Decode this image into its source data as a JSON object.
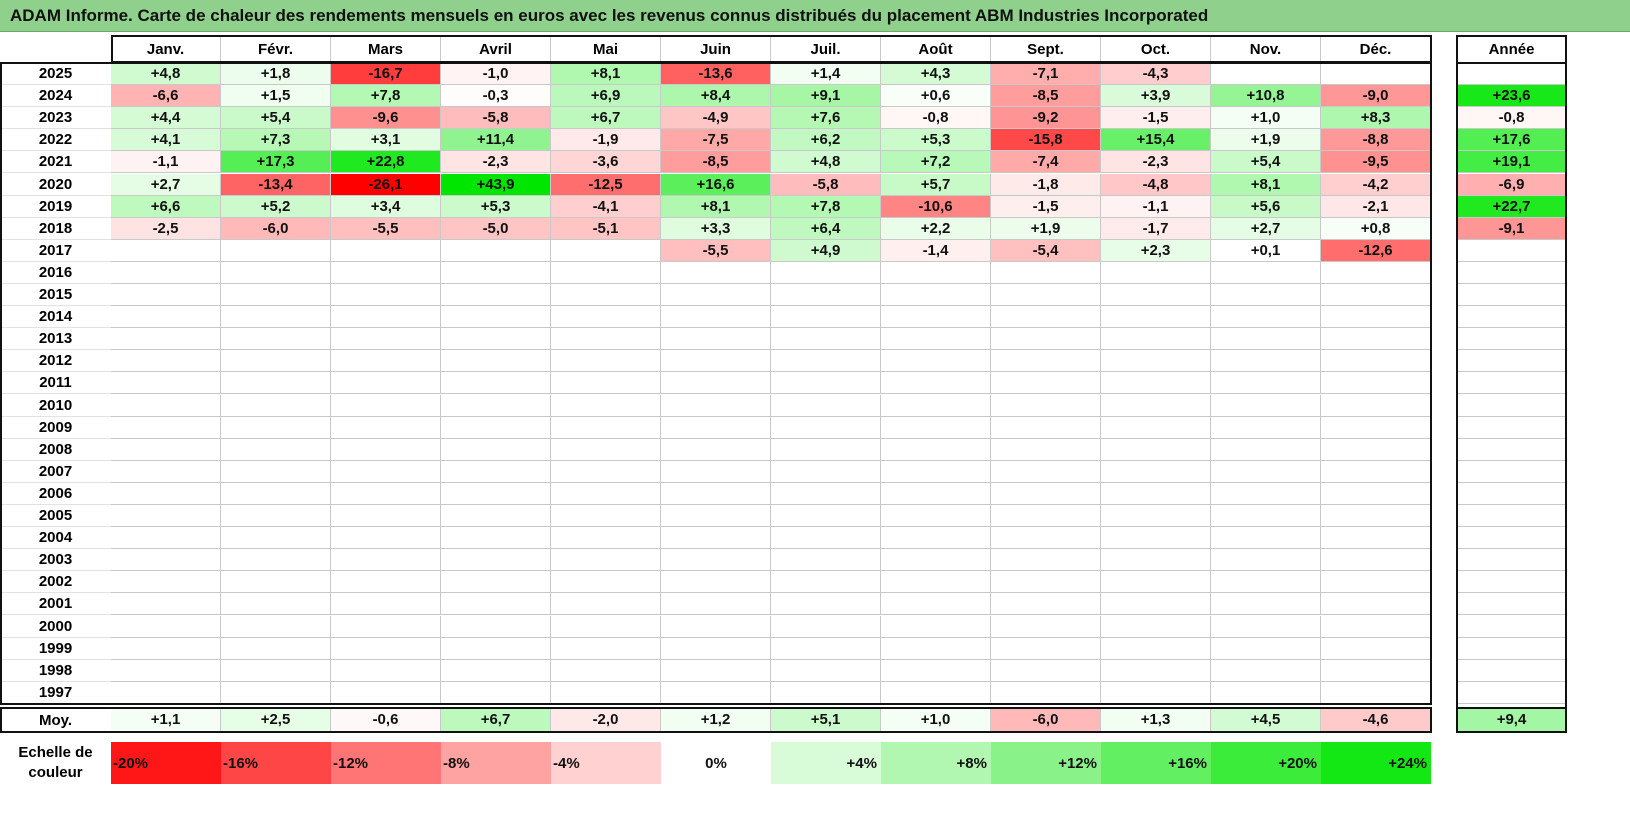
{
  "title": "ADAM Informe. Carte de chaleur des rendements mensuels en euros avec les revenus connus distribués du placement ABM Industries Incorporated",
  "chart_data": {
    "type": "heatmap",
    "columns": [
      "Janv.",
      "Févr.",
      "Mars",
      "Avril",
      "Mai",
      "Juin",
      "Juil.",
      "Août",
      "Sept.",
      "Oct.",
      "Nov.",
      "Déc."
    ],
    "annual_header": "Année",
    "rows": [
      {
        "year": "2025",
        "values": [
          "+4,8",
          "+1,8",
          "-16,7",
          "-1,0",
          "+8,1",
          "-13,6",
          "+1,4",
          "+4,3",
          "-7,1",
          "-4,3",
          "",
          ""
        ],
        "annual": ""
      },
      {
        "year": "2024",
        "values": [
          "-6,6",
          "+1,5",
          "+7,8",
          "-0,3",
          "+6,9",
          "+8,4",
          "+9,1",
          "+0,6",
          "-8,5",
          "+3,9",
          "+10,8",
          "-9,0"
        ],
        "annual": "+23,6"
      },
      {
        "year": "2023",
        "values": [
          "+4,4",
          "+5,4",
          "-9,6",
          "-5,8",
          "+6,7",
          "-4,9",
          "+7,6",
          "-0,8",
          "-9,2",
          "-1,5",
          "+1,0",
          "+8,3"
        ],
        "annual": "-0,8"
      },
      {
        "year": "2022",
        "values": [
          "+4,1",
          "+7,3",
          "+3,1",
          "+11,4",
          "-1,9",
          "-7,5",
          "+6,2",
          "+5,3",
          "-15,8",
          "+15,4",
          "+1,9",
          "-8,8"
        ],
        "annual": "+17,6"
      },
      {
        "year": "2021",
        "values": [
          "-1,1",
          "+17,3",
          "+22,8",
          "-2,3",
          "-3,6",
          "-8,5",
          "+4,8",
          "+7,2",
          "-7,4",
          "-2,3",
          "+5,4",
          "-9,5"
        ],
        "annual": "+19,1"
      },
      {
        "year": "2020",
        "values": [
          "+2,7",
          "-13,4",
          "-26,1",
          "+43,9",
          "-12,5",
          "+16,6",
          "-5,8",
          "+5,7",
          "-1,8",
          "-4,8",
          "+8,1",
          "-4,2"
        ],
        "annual": "-6,9"
      },
      {
        "year": "2019",
        "values": [
          "+6,6",
          "+5,2",
          "+3,4",
          "+5,3",
          "-4,1",
          "+8,1",
          "+7,8",
          "-10,6",
          "-1,5",
          "-1,1",
          "+5,6",
          "-2,1"
        ],
        "annual": "+22,7"
      },
      {
        "year": "2018",
        "values": [
          "-2,5",
          "-6,0",
          "-5,5",
          "-5,0",
          "-5,1",
          "+3,3",
          "+6,4",
          "+2,2",
          "+1,9",
          "-1,7",
          "+2,7",
          "+0,8"
        ],
        "annual": "-9,1"
      },
      {
        "year": "2017",
        "values": [
          "",
          "",
          "",
          "",
          "",
          "-5,5",
          "+4,9",
          "-1,4",
          "-5,4",
          "+2,3",
          "+0,1",
          "-12,6"
        ],
        "annual": ""
      },
      {
        "year": "2016",
        "values": [
          "",
          "",
          "",
          "",
          "",
          "",
          "",
          "",
          "",
          "",
          "",
          ""
        ],
        "annual": ""
      },
      {
        "year": "2015",
        "values": [
          "",
          "",
          "",
          "",
          "",
          "",
          "",
          "",
          "",
          "",
          "",
          ""
        ],
        "annual": ""
      },
      {
        "year": "2014",
        "values": [
          "",
          "",
          "",
          "",
          "",
          "",
          "",
          "",
          "",
          "",
          "",
          ""
        ],
        "annual": ""
      },
      {
        "year": "2013",
        "values": [
          "",
          "",
          "",
          "",
          "",
          "",
          "",
          "",
          "",
          "",
          "",
          ""
        ],
        "annual": ""
      },
      {
        "year": "2012",
        "values": [
          "",
          "",
          "",
          "",
          "",
          "",
          "",
          "",
          "",
          "",
          "",
          ""
        ],
        "annual": ""
      },
      {
        "year": "2011",
        "values": [
          "",
          "",
          "",
          "",
          "",
          "",
          "",
          "",
          "",
          "",
          "",
          ""
        ],
        "annual": ""
      },
      {
        "year": "2010",
        "values": [
          "",
          "",
          "",
          "",
          "",
          "",
          "",
          "",
          "",
          "",
          "",
          ""
        ],
        "annual": ""
      },
      {
        "year": "2009",
        "values": [
          "",
          "",
          "",
          "",
          "",
          "",
          "",
          "",
          "",
          "",
          "",
          ""
        ],
        "annual": ""
      },
      {
        "year": "2008",
        "values": [
          "",
          "",
          "",
          "",
          "",
          "",
          "",
          "",
          "",
          "",
          "",
          ""
        ],
        "annual": ""
      },
      {
        "year": "2007",
        "values": [
          "",
          "",
          "",
          "",
          "",
          "",
          "",
          "",
          "",
          "",
          "",
          ""
        ],
        "annual": ""
      },
      {
        "year": "2006",
        "values": [
          "",
          "",
          "",
          "",
          "",
          "",
          "",
          "",
          "",
          "",
          "",
          ""
        ],
        "annual": ""
      },
      {
        "year": "2005",
        "values": [
          "",
          "",
          "",
          "",
          "",
          "",
          "",
          "",
          "",
          "",
          "",
          ""
        ],
        "annual": ""
      },
      {
        "year": "2004",
        "values": [
          "",
          "",
          "",
          "",
          "",
          "",
          "",
          "",
          "",
          "",
          "",
          ""
        ],
        "annual": ""
      },
      {
        "year": "2003",
        "values": [
          "",
          "",
          "",
          "",
          "",
          "",
          "",
          "",
          "",
          "",
          "",
          ""
        ],
        "annual": ""
      },
      {
        "year": "2002",
        "values": [
          "",
          "",
          "",
          "",
          "",
          "",
          "",
          "",
          "",
          "",
          "",
          ""
        ],
        "annual": ""
      },
      {
        "year": "2001",
        "values": [
          "",
          "",
          "",
          "",
          "",
          "",
          "",
          "",
          "",
          "",
          "",
          ""
        ],
        "annual": ""
      },
      {
        "year": "2000",
        "values": [
          "",
          "",
          "",
          "",
          "",
          "",
          "",
          "",
          "",
          "",
          "",
          ""
        ],
        "annual": ""
      },
      {
        "year": "1999",
        "values": [
          "",
          "",
          "",
          "",
          "",
          "",
          "",
          "",
          "",
          "",
          "",
          ""
        ],
        "annual": ""
      },
      {
        "year": "1998",
        "values": [
          "",
          "",
          "",
          "",
          "",
          "",
          "",
          "",
          "",
          "",
          "",
          ""
        ],
        "annual": ""
      },
      {
        "year": "1997",
        "values": [
          "",
          "",
          "",
          "",
          "",
          "",
          "",
          "",
          "",
          "",
          "",
          ""
        ],
        "annual": ""
      }
    ],
    "average": {
      "label": "Moy.",
      "values": [
        "+1,1",
        "+2,5",
        "-0,6",
        "+6,7",
        "-2,0",
        "+1,2",
        "+5,1",
        "+1,0",
        "-6,0",
        "+1,3",
        "+4,5",
        "-4,6"
      ],
      "annual": "+9,4"
    },
    "color_scale": {
      "label": "Echelle de couleur",
      "stops": [
        {
          "label": "-20%",
          "value": -20
        },
        {
          "label": "-16%",
          "value": -16
        },
        {
          "label": "-12%",
          "value": -12
        },
        {
          "label": "-8%",
          "value": -8
        },
        {
          "label": "-4%",
          "value": -4
        },
        {
          "label": "0%",
          "value": 0
        },
        {
          "label": "+4%",
          "value": 4
        },
        {
          "label": "+8%",
          "value": 8
        },
        {
          "label": "+12%",
          "value": 12
        },
        {
          "label": "+16%",
          "value": 16
        },
        {
          "label": "+20%",
          "value": 20
        },
        {
          "label": "+24%",
          "value": 24
        }
      ],
      "negative_color": "#ff0000",
      "positive_color": "#00e600",
      "neutral_color": "#ffffff"
    }
  }
}
